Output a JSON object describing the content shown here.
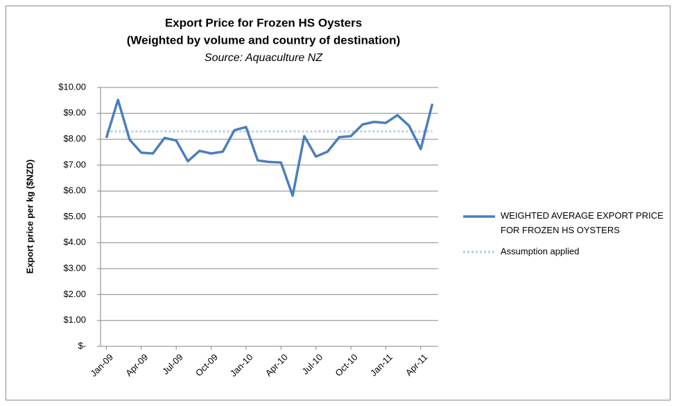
{
  "chart_data": {
    "type": "line",
    "title": "Export Price for Frozen HS Oysters",
    "subtitle": "(Weighted by volume and country of destination)",
    "source": "Source: Aquaculture NZ",
    "y_label": "Export price per kg ($NZD)",
    "categories": [
      "Jan-09",
      null,
      null,
      "Apr-09",
      null,
      null,
      "Jul-09",
      null,
      null,
      "Oct-09",
      null,
      null,
      "Jan-10",
      null,
      null,
      "Apr-10",
      null,
      null,
      "Jul-10",
      null,
      null,
      "Oct-10",
      null,
      null,
      "Jan-11",
      null,
      null,
      "Apr-11",
      null
    ],
    "series": [
      {
        "name": "WEIGHTED AVERAGE EXPORT PRICE FOR FROZEN HS OYSTERS",
        "color": "#4a7ebb",
        "style": "solid",
        "values": [
          8.05,
          9.52,
          7.98,
          7.48,
          7.45,
          8.05,
          7.95,
          7.15,
          7.55,
          7.45,
          7.52,
          8.35,
          8.47,
          7.18,
          7.12,
          7.1,
          5.82,
          8.12,
          7.33,
          7.52,
          8.08,
          8.12,
          8.57,
          8.67,
          8.63,
          8.93,
          8.52,
          7.62,
          9.37
        ]
      },
      {
        "name": "Assumption applied",
        "color": "#b9cde5",
        "style": "dotted",
        "values": [
          8.3,
          8.3,
          8.3,
          8.3,
          8.3,
          8.3,
          8.3,
          8.3,
          8.3,
          8.3,
          8.3,
          8.3,
          8.3,
          8.3,
          8.3,
          8.3,
          8.3,
          8.3,
          8.3,
          8.3,
          8.3,
          8.3,
          8.3,
          8.3,
          8.3,
          8.3,
          8.3,
          8.3,
          8.3
        ]
      }
    ],
    "ylim": [
      0,
      10
    ],
    "yticks": [
      {
        "value": 0,
        "label": "$-"
      },
      {
        "value": 1,
        "label": "$1.00"
      },
      {
        "value": 2,
        "label": "$2.00"
      },
      {
        "value": 3,
        "label": "$3.00"
      },
      {
        "value": 4,
        "label": "$4.00"
      },
      {
        "value": 5,
        "label": "$5.00"
      },
      {
        "value": 6,
        "label": "$6.00"
      },
      {
        "value": 7,
        "label": "$7.00"
      },
      {
        "value": 8,
        "label": "$8.00"
      },
      {
        "value": 9,
        "label": "$9.00"
      },
      {
        "value": 10,
        "label": "$10.00"
      }
    ],
    "grid": true,
    "legend": "right"
  }
}
